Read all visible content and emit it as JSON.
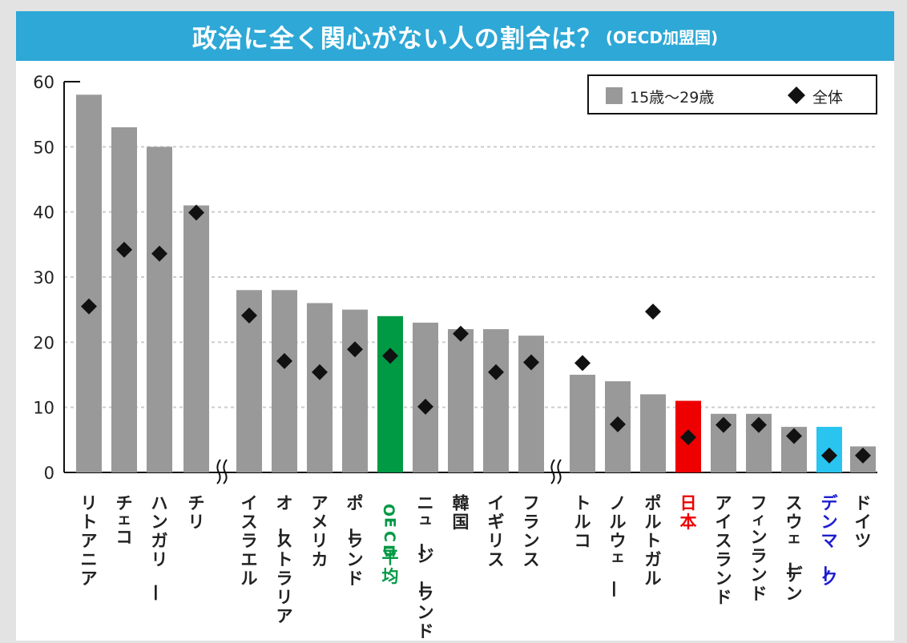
{
  "title": {
    "main": "政治に全く関心がない人の割合は？",
    "sub": "(OECD加盟国)"
  },
  "colors": {
    "bar": "#999999",
    "oecd_avg": "#009944",
    "japan": "#ee0000",
    "denmark": "#29c4f0",
    "label_default": "#222222",
    "label_oecd": "#009944",
    "label_japan": "#ee0000",
    "label_denmark": "#1d1dd0",
    "grid": "#cccccc"
  },
  "chart_data": {
    "type": "bar",
    "categories": [
      "リトアニア",
      "チェコ",
      "ハンガリー",
      "チリ",
      "イスラエル",
      "オーストラリア",
      "アメリカ",
      "ポーランド",
      "OECD平均",
      "ニュージーランド",
      "韓国",
      "イギリス",
      "フランス",
      "トルコ",
      "ノルウェー",
      "ポルトガル",
      "日本",
      "アイスランド",
      "フィンランド",
      "スウェーデン",
      "デンマーク",
      "ドイツ"
    ],
    "series": [
      {
        "name": "15歳〜29歳",
        "type": "bar",
        "values": [
          58,
          53,
          50,
          41,
          28,
          28,
          26,
          25,
          24,
          23,
          22,
          22,
          21,
          15,
          14,
          12,
          11,
          9,
          9,
          7,
          7,
          4
        ]
      },
      {
        "name": "全体",
        "type": "scatter",
        "marker": "diamond",
        "values": [
          25.5,
          34.2,
          33.6,
          39.9,
          24.1,
          17.1,
          15.4,
          18.9,
          17.9,
          10.1,
          21.3,
          15.4,
          16.9,
          16.8,
          7.4,
          24.7,
          5.4,
          7.3,
          7.3,
          5.6,
          2.6,
          2.6
        ]
      }
    ],
    "highlight": {
      "OECD平均": "oecd_avg",
      "日本": "japan",
      "デンマーク": "denmark"
    },
    "axis_breaks_after": [
      "チリ",
      "フランス"
    ],
    "y_ticks": [
      "0",
      "10",
      "20",
      "30",
      "40",
      "50",
      "60"
    ],
    "ylim": [
      0,
      60
    ],
    "grid": "horizontal-dashed",
    "legend_position": "top-right"
  }
}
